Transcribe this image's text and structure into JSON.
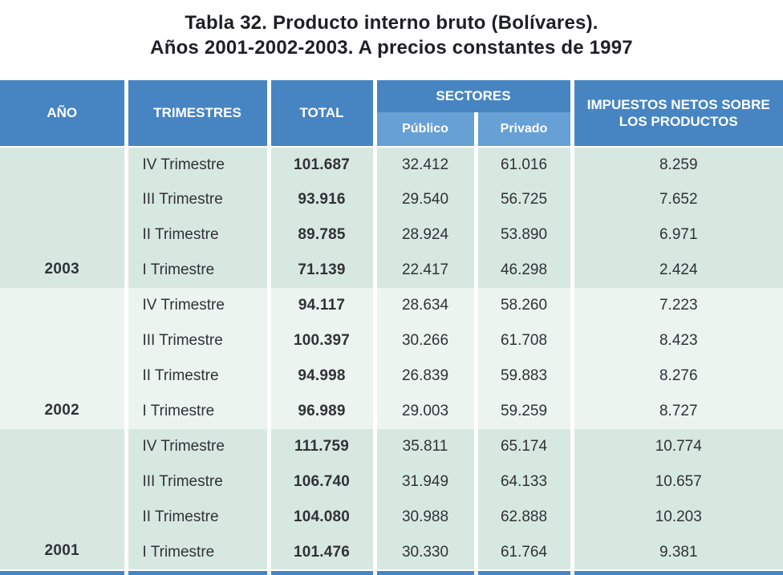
{
  "title": {
    "line1": "Tabla 32. Producto interno bruto (Bolívares).",
    "line2": "Años 2001-2002-2003. A precios constantes de 1997"
  },
  "colors": {
    "header-blue": "#4785c2",
    "sub-blue": "#66a0d5",
    "mint": "#d7e8e1",
    "pale": "#ebf4ef",
    "text-dark": "#313137",
    "title-dark": "#1f1f27"
  },
  "table": {
    "headers": {
      "ano": "AÑO",
      "trimestres": "TRIMESTRES",
      "total": "TOTAL",
      "sectores": "SECTORES",
      "publico": "Público",
      "privado": "Privado",
      "impuestos": "IMPUESTOS NETOS SOBRE LOS PRODUCTOS"
    },
    "groups": [
      {
        "year": "2003",
        "rows": [
          {
            "trimestre": "IV Trimestre",
            "total": "101.687",
            "publico": "32.412",
            "privado": "61.016",
            "impuestos": "8.259"
          },
          {
            "trimestre": "III Trimestre",
            "total": "93.916",
            "publico": "29.540",
            "privado": "56.725",
            "impuestos": "7.652"
          },
          {
            "trimestre": "II Trimestre",
            "total": "89.785",
            "publico": "28.924",
            "privado": "53.890",
            "impuestos": "6.971"
          },
          {
            "trimestre": "I Trimestre",
            "total": "71.139",
            "publico": "22.417",
            "privado": "46.298",
            "impuestos": "2.424"
          }
        ]
      },
      {
        "year": "2002",
        "rows": [
          {
            "trimestre": "IV Trimestre",
            "total": "94.117",
            "publico": "28.634",
            "privado": "58.260",
            "impuestos": "7.223"
          },
          {
            "trimestre": "III Trimestre",
            "total": "100.397",
            "publico": "30.266",
            "privado": "61.708",
            "impuestos": "8.423"
          },
          {
            "trimestre": "II Trimestre",
            "total": "94.998",
            "publico": "26.839",
            "privado": "59.883",
            "impuestos": "8.276"
          },
          {
            "trimestre": "I Trimestre",
            "total": "96.989",
            "publico": "29.003",
            "privado": "59.259",
            "impuestos": "8.727"
          }
        ]
      },
      {
        "year": "2001",
        "rows": [
          {
            "trimestre": "IV Trimestre",
            "total": "111.759",
            "publico": "35.811",
            "privado": "65.174",
            "impuestos": "10.774"
          },
          {
            "trimestre": "III Trimestre",
            "total": "106.740",
            "publico": "31.949",
            "privado": "64.133",
            "impuestos": "10.657"
          },
          {
            "trimestre": "II Trimestre",
            "total": "104.080",
            "publico": "30.988",
            "privado": "62.888",
            "impuestos": "10.203"
          },
          {
            "trimestre": "I Trimestre",
            "total": "101.476",
            "publico": "30.330",
            "privado": "61.764",
            "impuestos": "9.381"
          }
        ]
      }
    ]
  }
}
